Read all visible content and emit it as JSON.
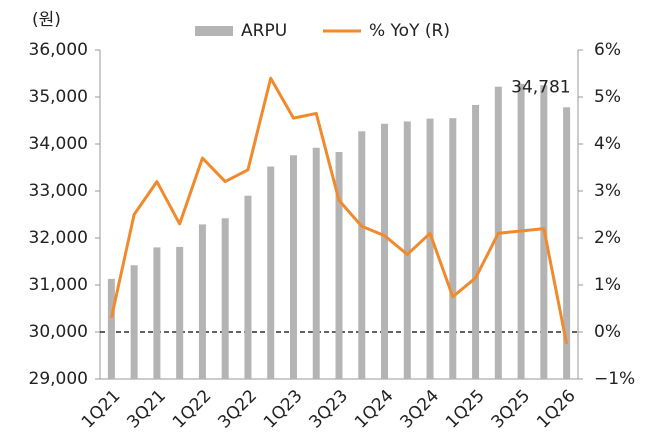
{
  "chart_data": {
    "type": "bar-line",
    "y_axis_label": "(원)",
    "categories": [
      "1Q21",
      null,
      "3Q21",
      null,
      "1Q22",
      null,
      "3Q22",
      null,
      "1Q23",
      null,
      "3Q23",
      null,
      "1Q24",
      null,
      "3Q24",
      null,
      "1Q25",
      null,
      "3Q25",
      null,
      "1Q26"
    ],
    "series": [
      {
        "name": "ARPU",
        "type": "bar",
        "color": "#b4b4b4",
        "values": [
          31130,
          31420,
          31800,
          31810,
          32290,
          32420,
          32900,
          33520,
          33760,
          33920,
          33830,
          34270,
          34430,
          34480,
          34540,
          34550,
          34830,
          35220,
          35280,
          35250,
          34781
        ],
        "value_labels": [
          null,
          null,
          null,
          null,
          null,
          null,
          null,
          null,
          null,
          null,
          null,
          null,
          null,
          null,
          null,
          null,
          null,
          null,
          null,
          null,
          "34,781"
        ]
      },
      {
        "name": "% YoY (R)",
        "type": "line",
        "axis": "y2",
        "color": "#f08a2c",
        "values": [
          0.3,
          2.5,
          3.2,
          2.3,
          3.7,
          3.2,
          3.45,
          5.4,
          4.55,
          4.65,
          2.8,
          2.25,
          2.05,
          1.65,
          2.1,
          0.75,
          1.15,
          2.1,
          2.15,
          2.2,
          -0.25
        ]
      }
    ],
    "ylim": [
      29000,
      36000
    ],
    "yticks": [
      {
        "value": 29000,
        "label": "29,000"
      },
      {
        "value": 30000,
        "label": "30,000"
      },
      {
        "value": 31000,
        "label": "31,000"
      },
      {
        "value": 32000,
        "label": "32,000"
      },
      {
        "value": 33000,
        "label": "33,000"
      },
      {
        "value": 34000,
        "label": "34,000"
      },
      {
        "value": 35000,
        "label": "35,000"
      },
      {
        "value": 36000,
        "label": "36,000"
      }
    ],
    "y2lim": [
      -1,
      6
    ],
    "y2ticks": [
      {
        "value": -1,
        "label": "−1%"
      },
      {
        "value": 0,
        "label": "0%"
      },
      {
        "value": 1,
        "label": "1%"
      },
      {
        "value": 2,
        "label": "2%"
      },
      {
        "value": 3,
        "label": "3%"
      },
      {
        "value": 4,
        "label": "4%"
      },
      {
        "value": 5,
        "label": "5%"
      },
      {
        "value": 6,
        "label": "6%"
      }
    ],
    "legend": "top"
  }
}
